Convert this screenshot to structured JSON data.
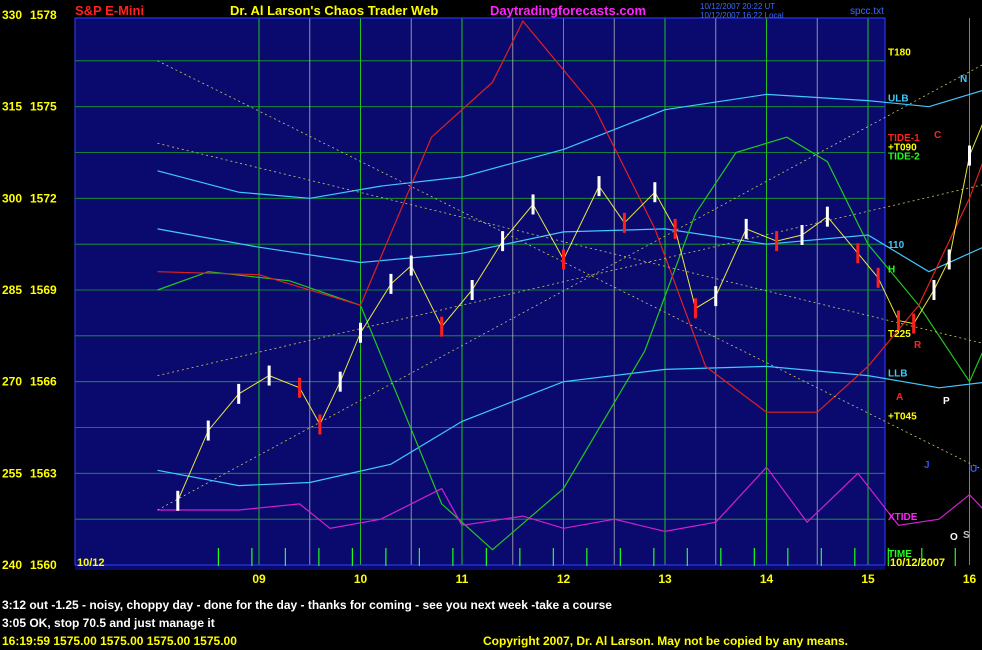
{
  "header": {
    "symbol": "S&P E-Mini",
    "title": "Dr. Al Larson's Chaos Trader Web",
    "site": "Daytradingforecasts.com",
    "timestamp_lines": [
      "10/12/2007 20:22 UT",
      "10/12/2007 16:22 Local"
    ],
    "file": "spcc.txt"
  },
  "colors": {
    "background": "#000000",
    "plot_bg": "#0a0a6e",
    "grid_h": "#1ec81e",
    "price_bar": "#ffffff",
    "down_bar": "#ff1e1e",
    "axis_text": "#ffff00",
    "magenta_text": "#ff22ff",
    "xtide": "#d020d0",
    "cyan_band": "#40c8ff"
  },
  "chart_data": {
    "type": "line",
    "title": "S&P E-Mini",
    "y_left_labels": [
      "330",
      "315",
      "300",
      "285",
      "270",
      "255",
      "240"
    ],
    "y_price_labels": [
      "1578",
      "1575",
      "1572",
      "1569",
      "1566",
      "1563",
      "1560"
    ],
    "y_price_range": [
      1560,
      1578
    ],
    "x_hours": [
      "09",
      "10",
      "11",
      "12",
      "13",
      "14",
      "15",
      "16"
    ],
    "x_start_label": "10/12",
    "x_end_label": "10/12/2007",
    "price_points": [
      [
        8.2,
        1562.1
      ],
      [
        8.5,
        1564.4
      ],
      [
        8.8,
        1565.6
      ],
      [
        9.1,
        1566.2
      ],
      [
        9.4,
        1565.8
      ],
      [
        9.6,
        1564.6
      ],
      [
        9.8,
        1566.0
      ],
      [
        10.0,
        1567.6
      ],
      [
        10.3,
        1569.2
      ],
      [
        10.5,
        1569.8
      ],
      [
        10.8,
        1567.8
      ],
      [
        11.1,
        1569.0
      ],
      [
        11.4,
        1570.6
      ],
      [
        11.7,
        1571.8
      ],
      [
        12.0,
        1570.0
      ],
      [
        12.35,
        1572.4
      ],
      [
        12.6,
        1571.2
      ],
      [
        12.9,
        1572.2
      ],
      [
        13.1,
        1571.0
      ],
      [
        13.3,
        1568.4
      ],
      [
        13.5,
        1568.8
      ],
      [
        13.8,
        1571.0
      ],
      [
        14.1,
        1570.6
      ],
      [
        14.35,
        1570.8
      ],
      [
        14.6,
        1571.4
      ],
      [
        14.9,
        1570.2
      ],
      [
        15.1,
        1569.4
      ],
      [
        15.3,
        1568.0
      ],
      [
        15.45,
        1567.9
      ],
      [
        15.65,
        1569.0
      ],
      [
        15.8,
        1570.0
      ],
      [
        16.0,
        1573.4
      ],
      [
        16.15,
        1574.6
      ]
    ],
    "right_labels": [
      {
        "text": "T180",
        "price": 1576.8,
        "color": "#ffff00"
      },
      {
        "text": "ULB",
        "price": 1575.3,
        "color": "#40c8ff"
      },
      {
        "text": "TIDE-1",
        "price": 1574.0,
        "color": "#ff2020"
      },
      {
        "text": "+T090",
        "price": 1573.7,
        "color": "#ffff00"
      },
      {
        "text": "TIDE-2",
        "price": 1573.4,
        "color": "#20ff20"
      },
      {
        "text": "110",
        "price": 1570.5,
        "color": "#40c8ff"
      },
      {
        "text": "H",
        "price": 1569.7,
        "color": "#20ff20"
      },
      {
        "text": "T225",
        "price": 1567.6,
        "color": "#ffff00"
      },
      {
        "text": "LLB",
        "price": 1566.3,
        "color": "#40c8ff"
      },
      {
        "text": "+T045",
        "price": 1564.9,
        "color": "#ffff00"
      },
      {
        "text": "XTIDE",
        "price": 1561.6,
        "color": "#ff22ff"
      },
      {
        "text": "TIME",
        "price": 1560.4,
        "color": "#20ff20"
      }
    ],
    "series": [
      {
        "name": "TIDE-1",
        "color": "#e02020"
      },
      {
        "name": "TIDE-2",
        "color": "#20d020"
      },
      {
        "name": "XTIDE",
        "color": "#d020d0"
      }
    ]
  },
  "side_letters": [
    {
      "text": "N",
      "color": "#40c8ff"
    },
    {
      "text": "C",
      "color": "#ff2020"
    },
    {
      "text": "R",
      "color": "#ff2020"
    },
    {
      "text": "A",
      "color": "#ff2020"
    },
    {
      "text": "P",
      "color": "#ffffff"
    },
    {
      "text": "J",
      "color": "#3050ff"
    },
    {
      "text": "U",
      "color": "#3050ff"
    },
    {
      "text": "O",
      "color": "#ffffff"
    },
    {
      "text": "S",
      "color": "#c0c0c0"
    }
  ],
  "messages": {
    "line1": "3:12 out -1.25 - noisy, choppy day - done for the day - thanks for coming - see you next week -take a course",
    "line2": "3:05 OK, stop 70.5 and just manage it",
    "line3": "16:19:59  1575.00  1575.00  1575.00  1575.00",
    "copyright": "Copyright 2007, Dr. Al Larson. May not be copied by any means."
  }
}
